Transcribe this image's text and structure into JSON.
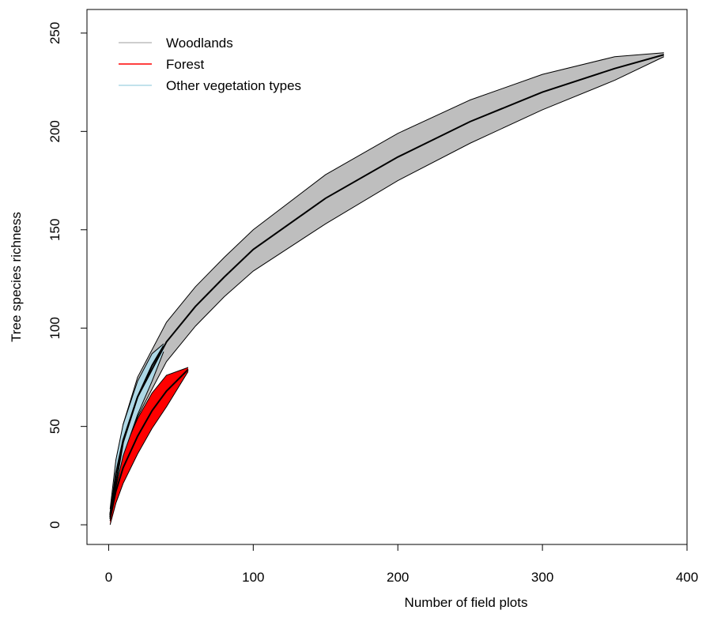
{
  "chart_data": {
    "type": "area",
    "title": "",
    "xlabel": "Number of field plots",
    "ylabel": "Tree species richness",
    "xlim": [
      -15,
      400
    ],
    "ylim": [
      -10,
      262
    ],
    "x_ticks": [
      0,
      100,
      200,
      300,
      400
    ],
    "y_ticks": [
      0,
      50,
      100,
      150,
      200,
      250
    ],
    "grid": false,
    "legend_position": "top-left",
    "series": [
      {
        "name": "Woodlands",
        "color": "#bebebe",
        "x": [
          1,
          10,
          20,
          40,
          60,
          80,
          100,
          150,
          200,
          250,
          300,
          350,
          384
        ],
        "mean": [
          4,
          42,
          65,
          93,
          111,
          126,
          140,
          166,
          187,
          205,
          220,
          232,
          239
        ],
        "lower": [
          2,
          33,
          55,
          83,
          101,
          116,
          129,
          153,
          175,
          194,
          211,
          226,
          238
        ],
        "upper": [
          6,
          51,
          75,
          103,
          121,
          136,
          150,
          178,
          199,
          216,
          229,
          238,
          240
        ]
      },
      {
        "name": " Forest",
        "color": "#ff0000",
        "x": [
          1,
          5,
          10,
          20,
          30,
          40,
          55
        ],
        "mean": [
          3,
          17,
          29,
          45,
          58,
          68,
          79
        ],
        "lower": [
          0,
          11,
          21,
          36,
          49,
          60,
          78
        ],
        "upper": [
          6,
          23,
          37,
          54,
          67,
          76,
          80
        ]
      },
      {
        "name": "Other vegetation types",
        "color": "#add8e6",
        "x": [
          1,
          5,
          10,
          20,
          30,
          38
        ],
        "mean": [
          5,
          26,
          43,
          65,
          81,
          91
        ],
        "lower": [
          2,
          19,
          35,
          56,
          73,
          88
        ],
        "upper": [
          8,
          33,
          51,
          73,
          87,
          92
        ]
      }
    ]
  }
}
